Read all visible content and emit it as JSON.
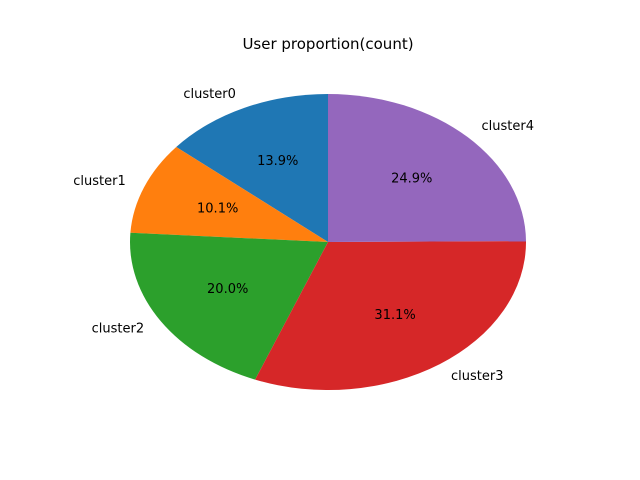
{
  "chart_data": {
    "type": "pie",
    "title": "User proportion(count)",
    "start_angle_deg": 90,
    "direction": "counterclockwise",
    "slices": [
      {
        "label": "cluster0",
        "percent": 13.9,
        "pct_label": "13.9%",
        "color": "#1f77b4"
      },
      {
        "label": "cluster1",
        "percent": 10.1,
        "pct_label": "10.1%",
        "color": "#ff7f0e"
      },
      {
        "label": "cluster2",
        "percent": 20.0,
        "pct_label": "20.0%",
        "color": "#2ca02c"
      },
      {
        "label": "cluster3",
        "percent": 31.1,
        "pct_label": "31.1%",
        "color": "#d62728"
      },
      {
        "label": "cluster4",
        "percent": 24.9,
        "pct_label": "24.9%",
        "color": "#9467bd"
      }
    ]
  }
}
